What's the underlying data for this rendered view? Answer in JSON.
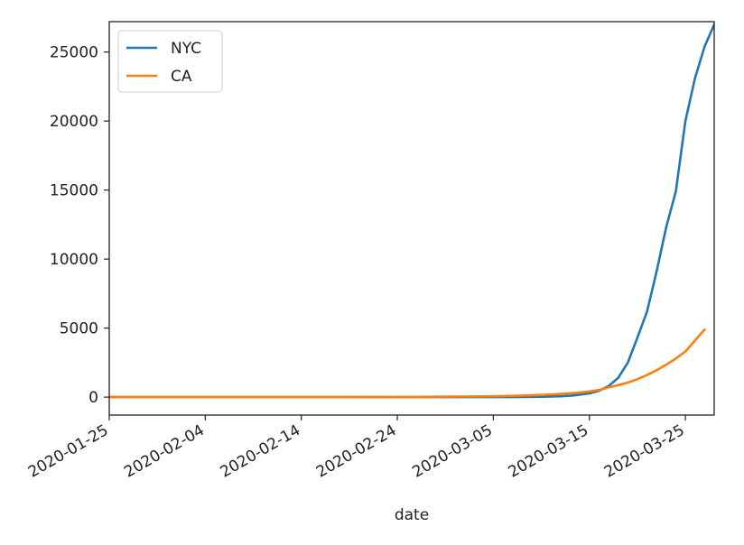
{
  "chart_data": {
    "type": "line",
    "title": "",
    "xlabel": "date",
    "ylabel": "",
    "grid": false,
    "legend_position": "top-left",
    "x_ticks": [
      "2020-01-25",
      "2020-02-04",
      "2020-02-14",
      "2020-02-24",
      "2020-03-05",
      "2020-03-15",
      "2020-03-25"
    ],
    "y_ticks": [
      0,
      5000,
      10000,
      15000,
      20000,
      25000
    ],
    "xlim": [
      "2020-01-25",
      "2020-03-28"
    ],
    "ylim": [
      -1300,
      27200
    ],
    "series": [
      {
        "name": "NYC",
        "color": "#1f77b4",
        "x": [
          "2020-01-25",
          "2020-03-05",
          "2020-03-08",
          "2020-03-10",
          "2020-03-12",
          "2020-03-13",
          "2020-03-14",
          "2020-03-15",
          "2020-03-16",
          "2020-03-17",
          "2020-03-18",
          "2020-03-19",
          "2020-03-20",
          "2020-03-21",
          "2020-03-22",
          "2020-03-23",
          "2020-03-24",
          "2020-03-25",
          "2020-03-26",
          "2020-03-27",
          "2020-03-28"
        ],
        "y": [
          0,
          0,
          10,
          30,
          60,
          100,
          170,
          270,
          460,
          800,
          1400,
          2500,
          4300,
          6200,
          9100,
          12300,
          14900,
          20000,
          23100,
          25400,
          27000
        ]
      },
      {
        "name": "CA",
        "color": "#ff7f0e",
        "x": [
          "2020-01-25",
          "2020-02-24",
          "2020-03-05",
          "2020-03-08",
          "2020-03-10",
          "2020-03-12",
          "2020-03-14",
          "2020-03-15",
          "2020-03-16",
          "2020-03-17",
          "2020-03-18",
          "2020-03-19",
          "2020-03-20",
          "2020-03-21",
          "2020-03-22",
          "2020-03-23",
          "2020-03-24",
          "2020-03-25",
          "2020-03-26",
          "2020-03-27"
        ],
        "y": [
          0,
          10,
          60,
          110,
          160,
          230,
          330,
          410,
          520,
          700,
          870,
          1050,
          1300,
          1600,
          1950,
          2350,
          2800,
          3300,
          4100,
          4900
        ]
      }
    ]
  }
}
